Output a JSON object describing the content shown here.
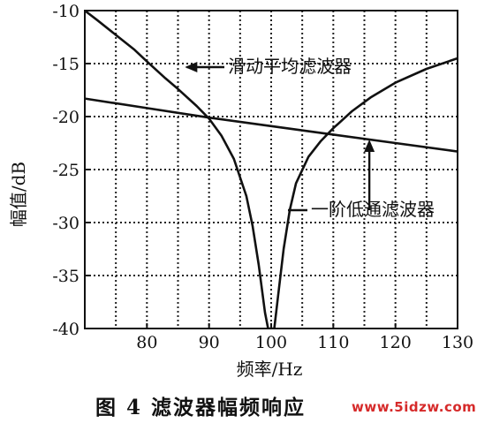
{
  "caption": "图 4  滤波器幅频响应",
  "watermark": "www.5idzw.com",
  "chart_data": {
    "type": "line",
    "title": "",
    "xlabel": "频率/Hz",
    "ylabel": "幅值/dB",
    "xlim": [
      70,
      130
    ],
    "ylim": [
      -40,
      -10
    ],
    "xticks": [
      80,
      90,
      100,
      110,
      120,
      130
    ],
    "yticks": [
      -10,
      -15,
      -20,
      -25,
      -30,
      -35,
      -40
    ],
    "grid": true,
    "grid_style": "dotted",
    "series": [
      {
        "name": "滑动平均滤波器",
        "x": [
          70,
          72,
          75,
          78,
          80,
          83,
          85,
          88,
          90,
          92,
          94,
          96,
          97,
          98,
          99,
          99.5,
          100.5,
          101,
          102,
          103,
          104,
          106,
          108,
          110,
          113,
          116,
          120,
          125,
          130
        ],
        "y": [
          -10.0,
          -10.9,
          -12.3,
          -13.7,
          -14.8,
          -16.4,
          -17.4,
          -19.0,
          -20.2,
          -21.8,
          -24.0,
          -27.5,
          -30.3,
          -34.0,
          -38.5,
          -40.0,
          -40.0,
          -37.5,
          -32.5,
          -28.8,
          -26.3,
          -23.8,
          -22.3,
          -21.1,
          -19.5,
          -18.2,
          -16.8,
          -15.5,
          -14.5
        ]
      },
      {
        "name": "一阶低通滤波器",
        "x": [
          70,
          80,
          90,
          100,
          110,
          120,
          130
        ],
        "y": [
          -18.3,
          -19.2,
          -20.1,
          -20.9,
          -21.7,
          -22.5,
          -23.3
        ]
      }
    ],
    "annotations": [
      {
        "text": "滑动平均滤波器",
        "series": 0
      },
      {
        "text": "一阶低通滤波器",
        "series": 1
      }
    ]
  }
}
